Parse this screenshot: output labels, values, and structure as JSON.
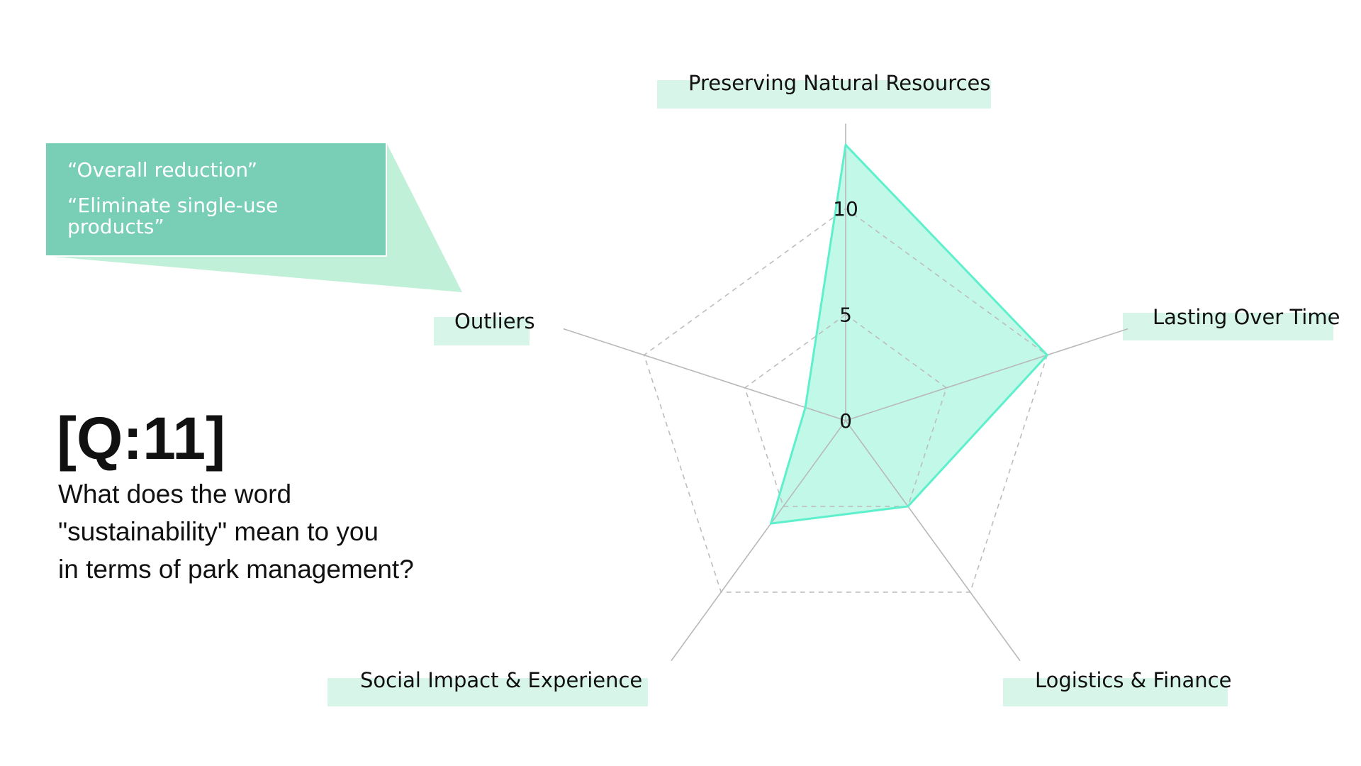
{
  "question": {
    "id": "[Q:11]",
    "lines": [
      "What does the word",
      "\"sustainability\" mean to you",
      "in terms of park management?"
    ]
  },
  "callout": {
    "quotes": [
      "“Overall reduction”",
      "“Eliminate single-use products”"
    ],
    "box_color": "#79cfb6",
    "tail_color": "#c0f0d8"
  },
  "chart_data": {
    "type": "radar",
    "categories": [
      "Preserving Natural Resources",
      "Lasting Over Time",
      "Logistics & Finance",
      "Social Impact & Experience",
      "Outliers"
    ],
    "values": [
      13,
      10,
      5,
      6,
      2
    ],
    "rlim": [
      0,
      14
    ],
    "ticks": [
      "0",
      "5",
      "10"
    ],
    "tick_values": [
      0,
      5,
      10
    ],
    "grid": true,
    "series_color": "#5ef0cc",
    "fill_color": "#c2f8e8",
    "label_bg_color": "#d8f5ea"
  }
}
